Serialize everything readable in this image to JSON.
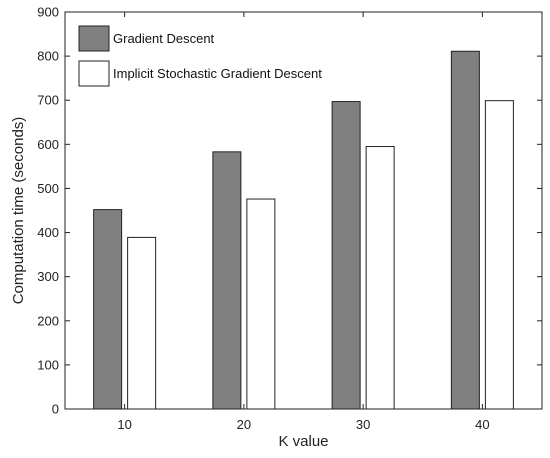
{
  "chart_data": {
    "type": "bar",
    "categories": [
      "10",
      "20",
      "30",
      "40"
    ],
    "series": [
      {
        "name": "Gradient Descent",
        "values": [
          452,
          583,
          697,
          811
        ],
        "color": "#808080"
      },
      {
        "name": "Implicit Stochastic Gradient Descent",
        "values": [
          389,
          476,
          595,
          699
        ],
        "color": "#ffffff"
      }
    ],
    "xlabel": "K value",
    "ylabel": "Computation time (seconds)",
    "ylim": [
      0,
      900
    ],
    "yticks": [
      0,
      100,
      200,
      300,
      400,
      500,
      600,
      700,
      800,
      900
    ],
    "grid": false,
    "legend_position": "top-left"
  }
}
